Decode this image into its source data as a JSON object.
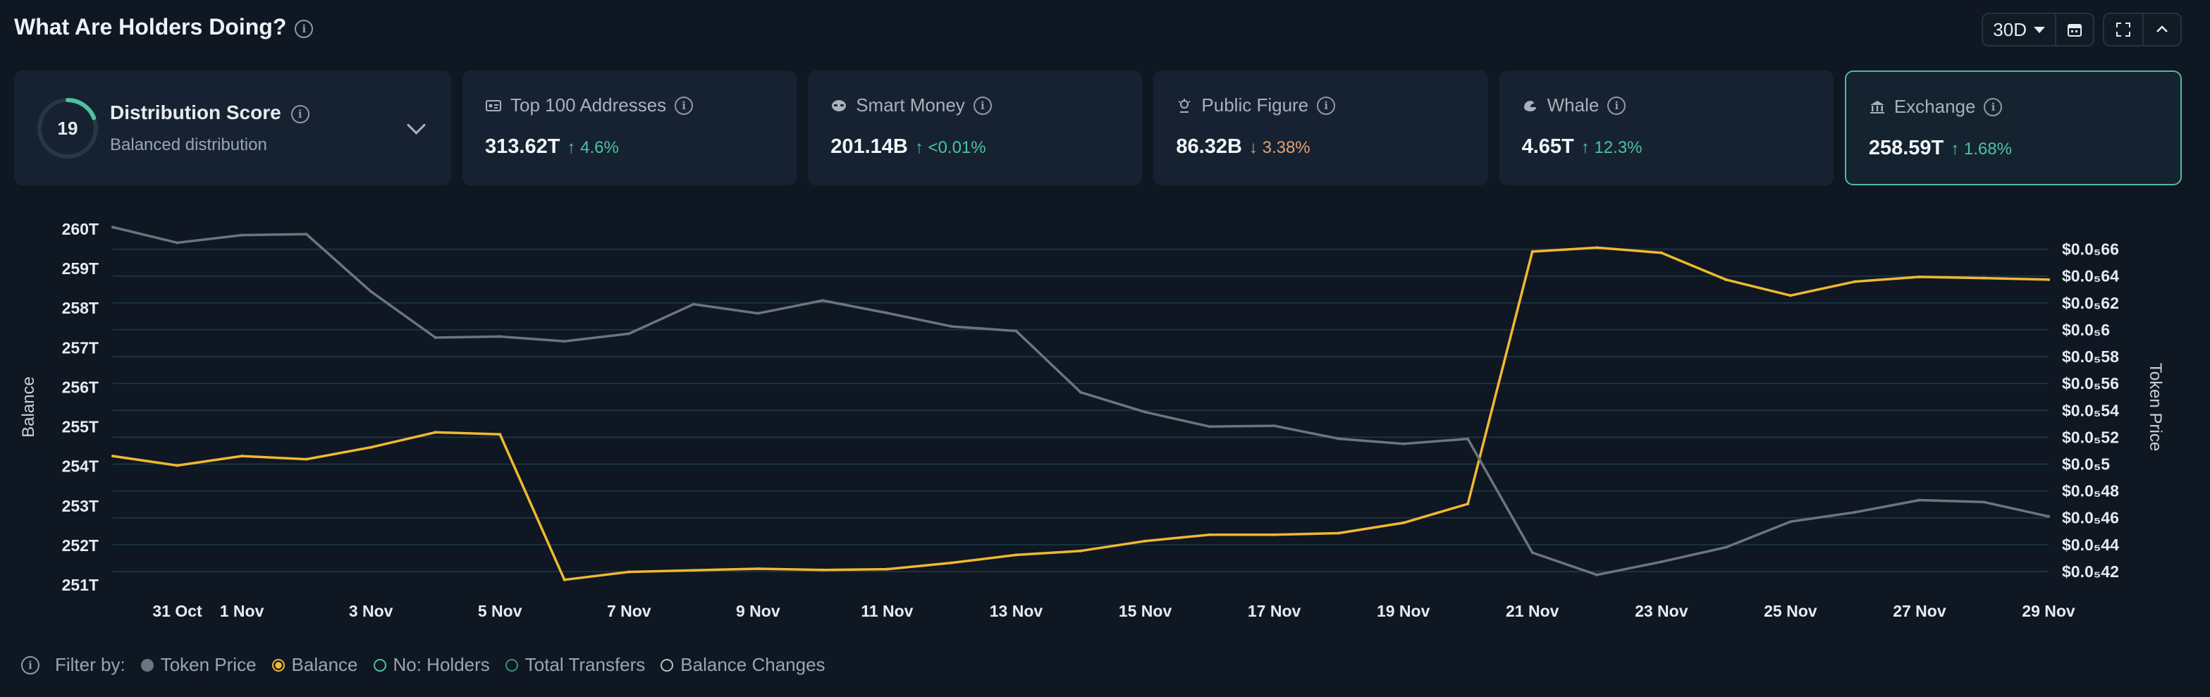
{
  "header": {
    "title": "What Are Holders Doing?",
    "period": "30D"
  },
  "score_card": {
    "value": "19",
    "title": "Distribution Score",
    "subtitle": "Balanced distribution",
    "fraction": 0.19,
    "accent": "#4cc3a1"
  },
  "cards": [
    {
      "label": "Top 100 Addresses",
      "value": "313.62T",
      "delta": "4.6%",
      "dir": "up",
      "icon": "id-card-icon"
    },
    {
      "label": "Smart Money",
      "value": "201.14B",
      "delta": "<0.01%",
      "dir": "up",
      "icon": "smart-money-icon"
    },
    {
      "label": "Public Figure",
      "value": "86.32B",
      "delta": "3.38%",
      "dir": "down",
      "icon": "public-figure-icon"
    },
    {
      "label": "Whale",
      "value": "4.65T",
      "delta": "12.3%",
      "dir": "up",
      "icon": "whale-icon"
    },
    {
      "label": "Exchange",
      "value": "258.59T",
      "delta": "1.68%",
      "dir": "up",
      "icon": "bank-icon",
      "active": true
    }
  ],
  "filters": {
    "label": "Filter by:",
    "items": [
      {
        "label": "Token Price",
        "color": "#6b7580",
        "state": "filled"
      },
      {
        "label": "Balance",
        "color": "#f0b92f",
        "state": "selected"
      },
      {
        "label": "No: Holders",
        "color": "#4cc3a1",
        "state": "outline"
      },
      {
        "label": "Total Transfers",
        "color": "#3a8f7a",
        "state": "outline"
      },
      {
        "label": "Balance Changes",
        "color": "#b8c0c8",
        "state": "outline"
      }
    ]
  },
  "chart_data": {
    "type": "line",
    "x": [
      "30 Oct",
      "31 Oct",
      "1 Nov",
      "2 Nov",
      "3 Nov",
      "4 Nov",
      "5 Nov",
      "6 Nov",
      "7 Nov",
      "8 Nov",
      "9 Nov",
      "10 Nov",
      "11 Nov",
      "12 Nov",
      "13 Nov",
      "14 Nov",
      "15 Nov",
      "16 Nov",
      "17 Nov",
      "18 Nov",
      "19 Nov",
      "20 Nov",
      "21 Nov",
      "22 Nov",
      "23 Nov",
      "24 Nov",
      "25 Nov",
      "26 Nov",
      "27 Nov",
      "28 Nov",
      "29 Nov"
    ],
    "x_tick_labels": [
      "31 Oct",
      "1 Nov",
      "3 Nov",
      "5 Nov",
      "7 Nov",
      "9 Nov",
      "11 Nov",
      "13 Nov",
      "15 Nov",
      "17 Nov",
      "19 Nov",
      "21 Nov",
      "23 Nov",
      "25 Nov",
      "27 Nov",
      "29 Nov"
    ],
    "y_left": {
      "label": "Balance",
      "ticks": [
        "251T",
        "252T",
        "253T",
        "254T",
        "255T",
        "256T",
        "257T",
        "258T",
        "259T",
        "260T"
      ],
      "range": [
        251,
        260
      ]
    },
    "y_right": {
      "label": "Token Price",
      "ticks": [
        "$0.0₅42",
        "$0.0₅44",
        "$0.0₅46",
        "$0.0₅48",
        "$0.0₅5",
        "$0.0₅52",
        "$0.0₅54",
        "$0.0₅56",
        "$0.0₅58",
        "$0.0₅6",
        "$0.0₅62",
        "$0.0₅64",
        "$0.0₅66"
      ],
      "range": [
        0.41,
        0.675
      ],
      "unit": "×1e-6 USD"
    },
    "series": [
      {
        "name": "Balance",
        "axis": "left",
        "color": "#f0b92f",
        "values": [
          254.26,
          254.02,
          254.26,
          254.18,
          254.48,
          254.86,
          254.81,
          251.13,
          251.33,
          251.37,
          251.41,
          251.38,
          251.4,
          251.56,
          251.76,
          251.86,
          252.11,
          252.27,
          252.27,
          252.31,
          252.57,
          253.05,
          259.43,
          259.53,
          259.4,
          258.72,
          258.32,
          258.67,
          258.79,
          258.76,
          258.72
        ]
      },
      {
        "name": "Token Price",
        "axis": "right",
        "color": "#6b7580",
        "values": [
          0.6764,
          0.6648,
          0.6705,
          0.6712,
          0.6285,
          0.5942,
          0.595,
          0.5914,
          0.5971,
          0.619,
          0.6122,
          0.6218,
          0.6125,
          0.6025,
          0.5991,
          0.5534,
          0.5387,
          0.5279,
          0.5285,
          0.5189,
          0.5151,
          0.5188,
          0.4341,
          0.4175,
          0.4272,
          0.438,
          0.4571,
          0.4641,
          0.4732,
          0.4717,
          0.461
        ]
      }
    ],
    "grid": true,
    "legend": "bottom"
  }
}
